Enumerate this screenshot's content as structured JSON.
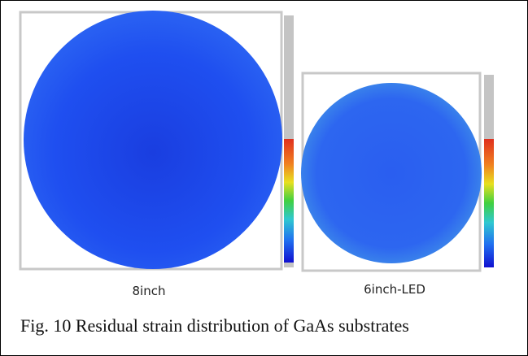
{
  "figure": {
    "panels": [
      {
        "label": "8inch"
      },
      {
        "label": "6inch-LED"
      }
    ],
    "caption": "Fig. 10 Residual strain distribution of GaAs substrates"
  }
}
